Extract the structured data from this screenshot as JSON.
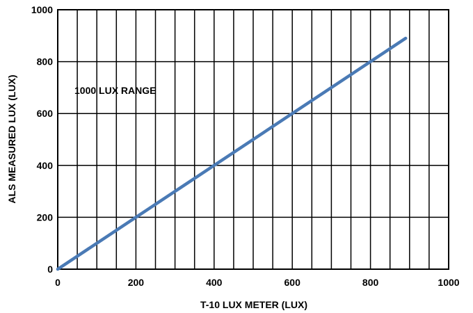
{
  "chart_data": {
    "type": "line",
    "title": "",
    "xlabel": "T-10 LUX METER (LUX)",
    "ylabel": "ALS MEASURED LUX (LUX)",
    "xlim": [
      0,
      1000
    ],
    "ylim": [
      0,
      1000
    ],
    "x_ticks": [
      "0",
      "200",
      "400",
      "600",
      "800",
      "1000"
    ],
    "y_ticks": [
      "0",
      "200",
      "400",
      "600",
      "800",
      "1000"
    ],
    "x_minor_step": 50,
    "y_major_step": 200,
    "grid": true,
    "annotation": "1000 LUX RANGE",
    "series": [
      {
        "x": [
          0,
          890
        ],
        "y": [
          0,
          890
        ],
        "color": "#4a7ab5"
      }
    ]
  }
}
